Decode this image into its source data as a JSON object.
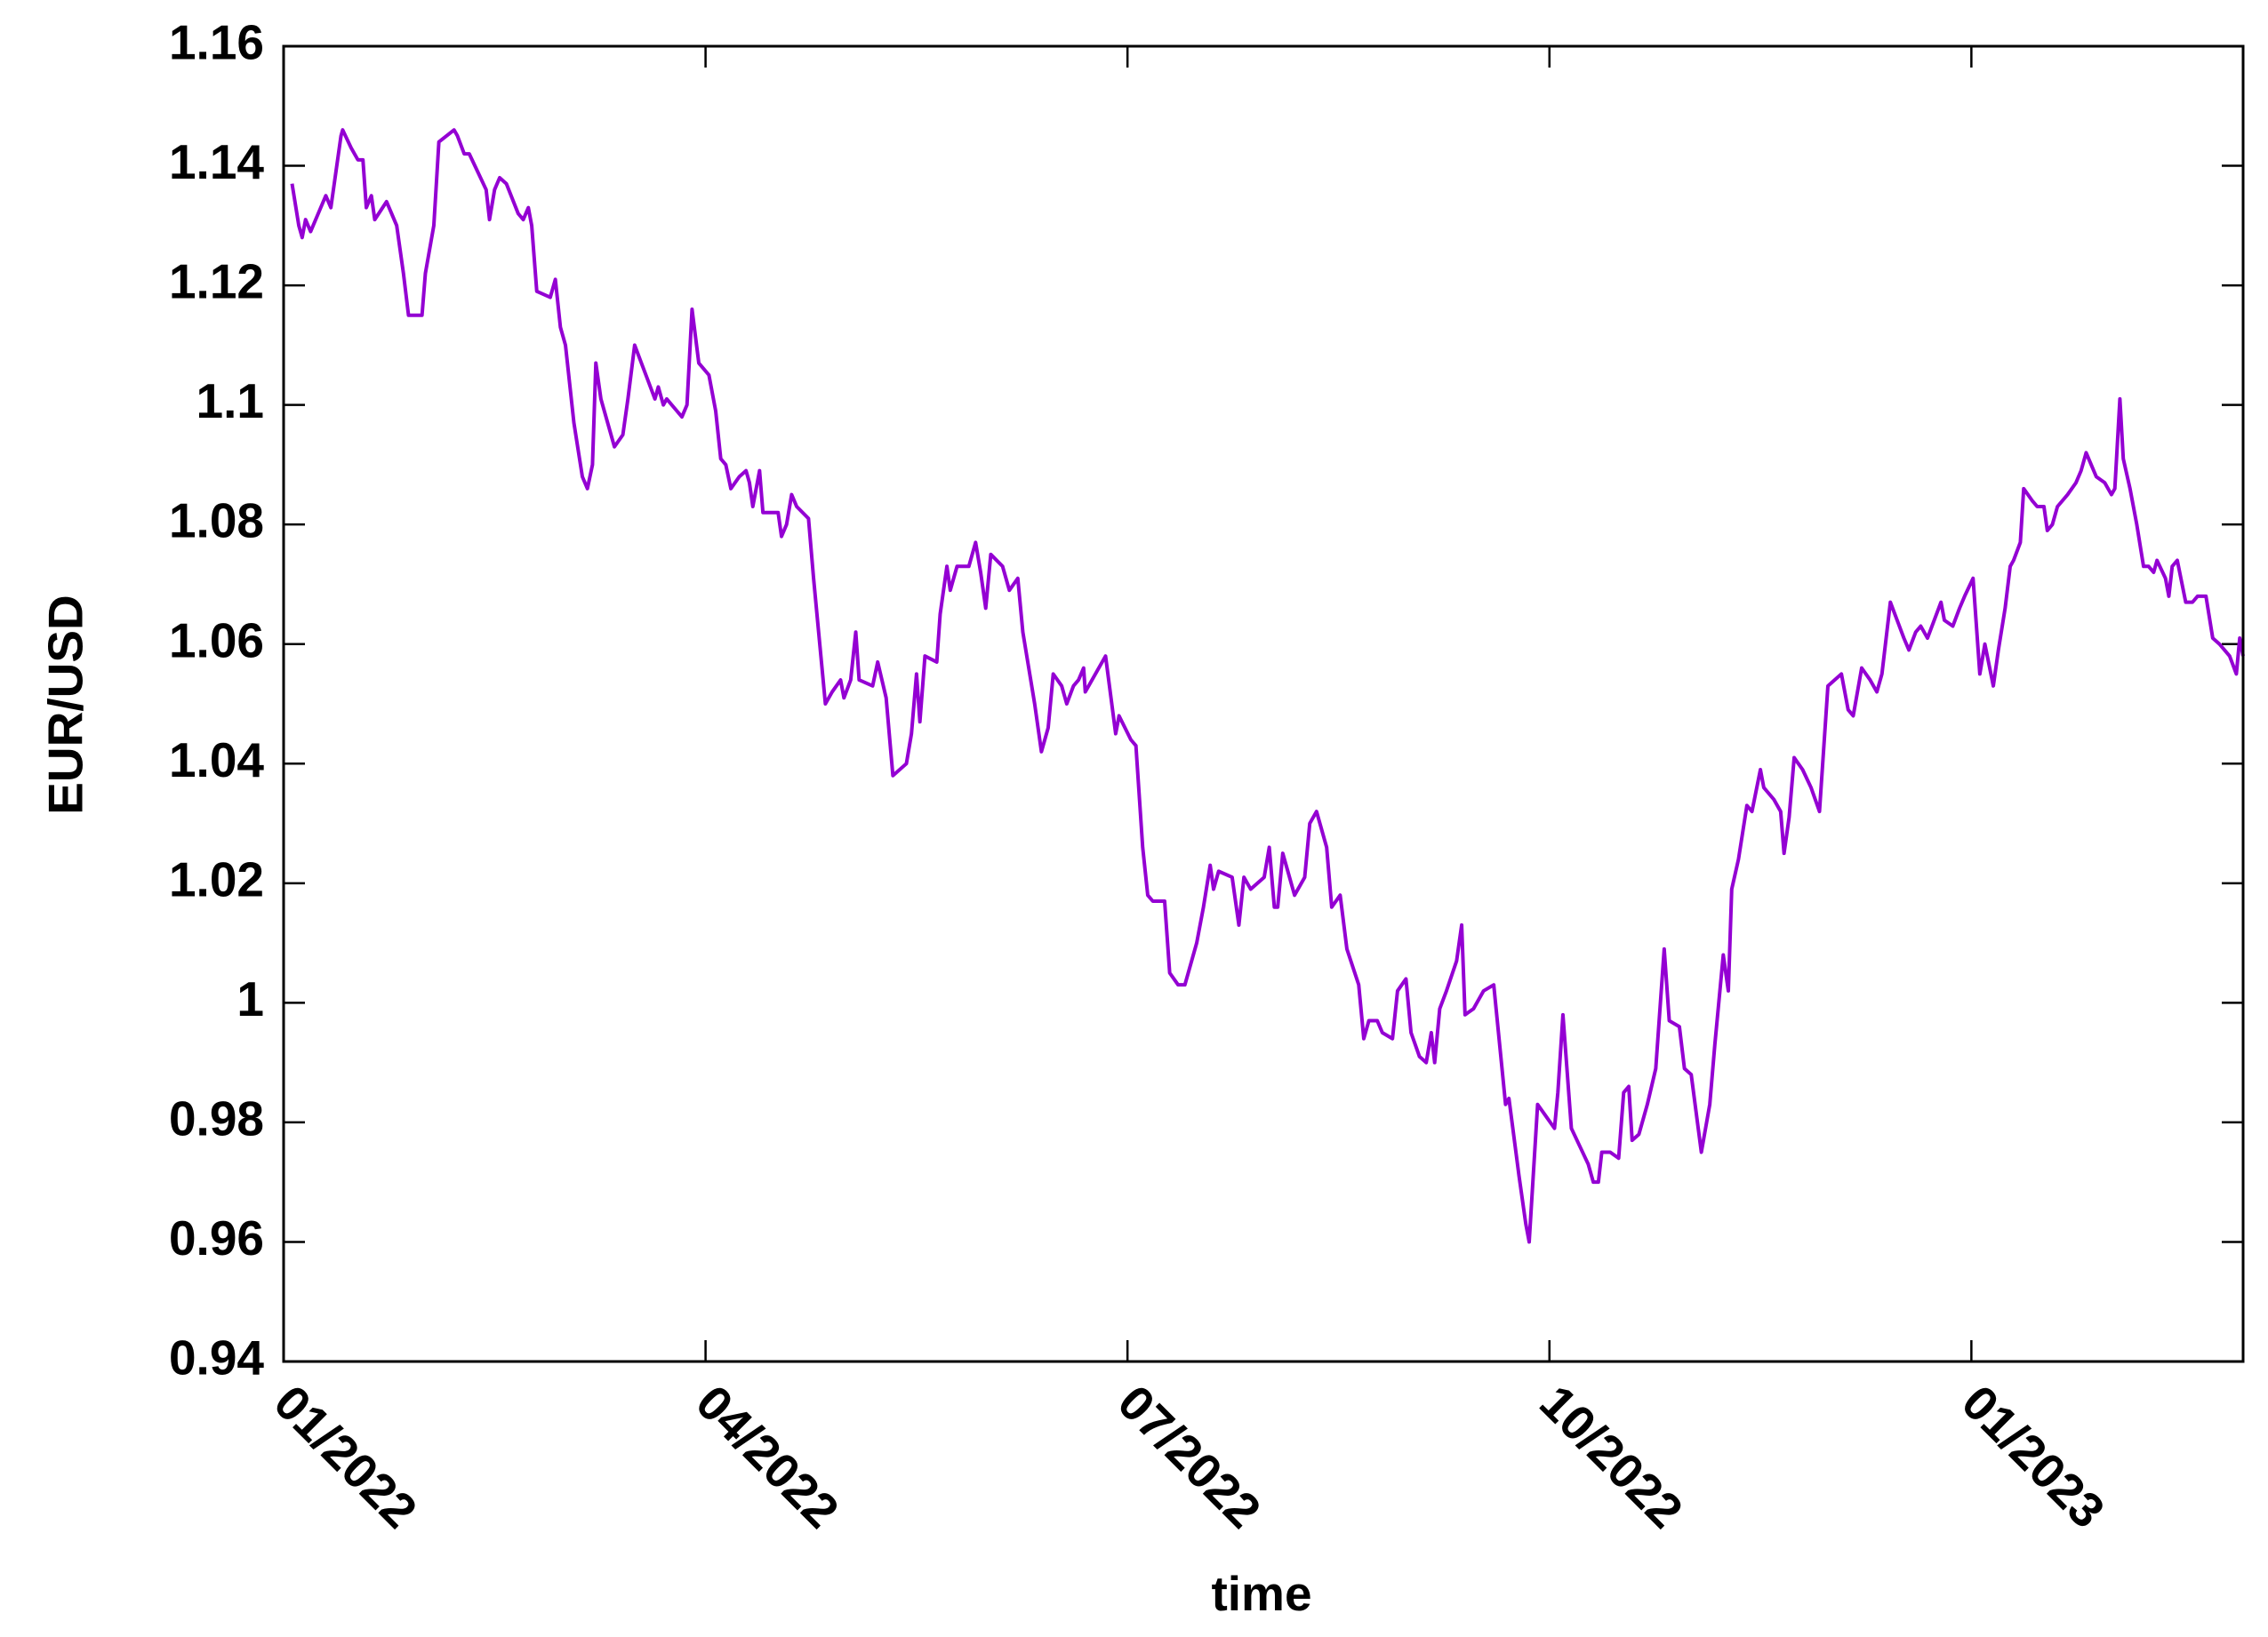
{
  "chart_data": {
    "type": "line",
    "x_label": "time",
    "y_label": "EUR/USD",
    "color": "#9400d3",
    "grid": false,
    "xlim": [
      2022,
      2023.161
    ],
    "xticks": [
      {
        "value": 2022,
        "label": "01/2022"
      },
      {
        "value": 2022.25,
        "label": "04/2022"
      },
      {
        "value": 2022.5,
        "label": "07/2022"
      },
      {
        "value": 2022.75,
        "label": "10/2022"
      },
      {
        "value": 2023,
        "label": "01/2023"
      }
    ],
    "ylim": [
      0.94,
      1.16
    ],
    "yticks": [
      0.94,
      0.96,
      0.98,
      1,
      1.02,
      1.04,
      1.06,
      1.08,
      1.1,
      1.12,
      1.14,
      1.16
    ],
    "x": [
      2022.005,
      2022.009,
      2022.011,
      2022.013,
      2022.016,
      2022.022,
      2022.025,
      2022.028,
      2022.03,
      2022.034,
      2022.035,
      2022.04,
      2022.044,
      2022.047,
      2022.049,
      2022.052,
      2022.054,
      2022.061,
      2022.067,
      2022.071,
      2022.074,
      2022.082,
      2022.084,
      2022.089,
      2022.092,
      2022.101,
      2022.103,
      2022.107,
      2022.11,
      2022.115,
      2022.12,
      2022.122,
      2022.125,
      2022.128,
      2022.132,
      2022.139,
      2022.142,
      2022.145,
      2022.147,
      2022.15,
      2022.158,
      2022.161,
      2022.164,
      2022.167,
      2022.172,
      2022.177,
      2022.18,
      2022.183,
      2022.185,
      2022.188,
      2022.192,
      2022.196,
      2022.201,
      2022.204,
      2022.208,
      2022.212,
      2022.216,
      2022.22,
      2022.222,
      2022.225,
      2022.227,
      2022.233,
      2022.236,
      2022.239,
      2022.242,
      2022.246,
      2022.252,
      2022.256,
      2022.259,
      2022.262,
      2022.265,
      2022.27,
      2022.274,
      2022.276,
      2022.278,
      2022.282,
      2022.284,
      2022.293,
      2022.295,
      2022.298,
      2022.301,
      2022.304,
      2022.311,
      2022.314,
      2022.321,
      2022.325,
      2022.33,
      2022.332,
      2022.336,
      2022.339,
      2022.341,
      2022.349,
      2022.352,
      2022.357,
      2022.361,
      2022.369,
      2022.372,
      2022.375,
      2022.377,
      2022.38,
      2022.387,
      2022.389,
      2022.393,
      2022.395,
      2022.399,
      2022.406,
      2022.41,
      2022.413,
      2022.416,
      2022.419,
      2022.426,
      2022.43,
      2022.435,
      2022.438,
      2022.445,
      2022.449,
      2022.453,
      2022.456,
      2022.461,
      2022.464,
      2022.468,
      2022.471,
      2022.474,
      2022.475,
      2022.487,
      2022.493,
      2022.495,
      2022.502,
      2022.505,
      2022.509,
      2022.512,
      2022.515,
      2022.522,
      2022.525,
      2022.53,
      2022.534,
      2022.541,
      2022.545,
      2022.549,
      2022.551,
      2022.554,
      2022.562,
      2022.566,
      2022.569,
      2022.573,
      2022.581,
      2022.584,
      2022.587,
      2022.589,
      2022.592,
      2022.599,
      2022.605,
      2022.608,
      2022.612,
      2022.618,
      2022.621,
      2022.626,
      2022.63,
      2022.637,
      2022.64,
      2022.643,
      2022.648,
      2022.651,
      2022.657,
      2022.66,
      2022.665,
      2022.668,
      2022.673,
      2022.677,
      2022.68,
      2022.682,
      2022.685,
      2022.689,
      2022.695,
      2022.698,
      2022.7,
      2022.705,
      2022.711,
      2022.717,
      2022.724,
      2022.726,
      2022.732,
      2022.736,
      2022.738,
      2022.743,
      2022.748,
      2022.753,
      2022.755,
      2022.758,
      2022.763,
      2022.768,
      2022.773,
      2022.776,
      2022.779,
      2022.781,
      2022.786,
      2022.791,
      2022.794,
      2022.797,
      2022.799,
      2022.803,
      2022.808,
      2022.813,
      2022.818,
      2022.821,
      2022.827,
      2022.83,
      2022.834,
      2022.84,
      2022.845,
      2022.848,
      2022.853,
      2022.856,
      2022.858,
      2022.862,
      2022.867,
      2022.87,
      2022.875,
      2022.877,
      2022.883,
      2022.887,
      2022.889,
      2022.892,
      2022.895,
      2022.9,
      2022.905,
      2022.91,
      2022.915,
      2022.923,
      2022.927,
      2022.93,
      2022.935,
      2022.94,
      2022.944,
      2022.947,
      2022.952,
      2022.956,
      2022.96,
      2022.963,
      2022.967,
      2022.97,
      2022.974,
      2022.978,
      2022.982,
      2022.984,
      2022.989,
      2022.993,
      2022.996,
      2023.001,
      2023.005,
      2023.008,
      2023.013,
      2023.016,
      2023.02,
      2023.023,
      2023.025,
      2023.029,
      2023.031,
      2023.036,
      2023.039,
      2023.043,
      2023.045,
      2023.048,
      2023.051,
      2023.057,
      2023.062,
      2023.065,
      2023.068,
      2023.071,
      2023.074,
      2023.079,
      2023.083,
      2023.085,
      2023.088,
      2023.09,
      2023.094,
      2023.098,
      2023.102,
      2023.105,
      2023.108,
      2023.11,
      2023.115,
      2023.117,
      2023.119,
      2023.122,
      2023.127,
      2023.131,
      2023.134,
      2023.139,
      2023.143,
      2023.147,
      2023.153,
      2023.157,
      2023.159,
      2023.161
    ],
    "values": [
      1.137,
      1.13,
      1.128,
      1.131,
      1.129,
      1.133,
      1.135,
      1.133,
      1.137,
      1.145,
      1.146,
      1.143,
      1.141,
      1.141,
      1.133,
      1.135,
      1.131,
      1.134,
      1.13,
      1.122,
      1.115,
      1.115,
      1.122,
      1.13,
      1.144,
      1.146,
      1.145,
      1.142,
      1.142,
      1.139,
      1.136,
      1.131,
      1.136,
      1.138,
      1.137,
      1.132,
      1.131,
      1.133,
      1.13,
      1.119,
      1.118,
      1.121,
      1.113,
      1.11,
      1.097,
      1.088,
      1.086,
      1.09,
      1.107,
      1.101,
      1.097,
      1.093,
      1.095,
      1.101,
      1.11,
      1.107,
      1.104,
      1.101,
      1.103,
      1.1,
      1.101,
      1.099,
      1.098,
      1.1,
      1.116,
      1.107,
      1.105,
      1.099,
      1.091,
      1.09,
      1.086,
      1.088,
      1.089,
      1.087,
      1.083,
      1.089,
      1.082,
      1.082,
      1.078,
      1.08,
      1.085,
      1.083,
      1.081,
      1.071,
      1.05,
      1.052,
      1.054,
      1.051,
      1.054,
      1.062,
      1.054,
      1.053,
      1.057,
      1.051,
      1.038,
      1.04,
      1.045,
      1.055,
      1.047,
      1.058,
      1.057,
      1.065,
      1.073,
      1.069,
      1.073,
      1.073,
      1.077,
      1.072,
      1.066,
      1.075,
      1.073,
      1.069,
      1.071,
      1.062,
      1.05,
      1.042,
      1.046,
      1.055,
      1.053,
      1.05,
      1.053,
      1.054,
      1.056,
      1.052,
      1.058,
      1.045,
      1.048,
      1.044,
      1.043,
      1.026,
      1.018,
      1.017,
      1.017,
      1.005,
      1.003,
      1.003,
      1.01,
      1.016,
      1.023,
      1.019,
      1.022,
      1.021,
      1.013,
      1.021,
      1.019,
      1.021,
      1.026,
      1.016,
      1.016,
      1.025,
      1.018,
      1.021,
      1.03,
      1.032,
      1.026,
      1.016,
      1.018,
      1.009,
      1.003,
      0.994,
      0.997,
      0.997,
      0.995,
      0.994,
      1.002,
      1.004,
      0.995,
      0.991,
      0.99,
      0.995,
      0.99,
      0.999,
      1.002,
      1.007,
      1.013,
      0.998,
      0.999,
      1.002,
      1.003,
      0.983,
      0.984,
      0.971,
      0.963,
      0.96,
      0.983,
      0.981,
      0.979,
      0.985,
      0.998,
      0.979,
      0.976,
      0.973,
      0.97,
      0.97,
      0.975,
      0.975,
      0.974,
      0.985,
      0.986,
      0.977,
      0.978,
      0.983,
      0.989,
      1.009,
      0.997,
      0.996,
      0.989,
      0.988,
      0.975,
      0.983,
      0.993,
      1.008,
      1.002,
      1.019,
      1.024,
      1.033,
      1.032,
      1.039,
      1.036,
      1.034,
      1.032,
      1.025,
      1.031,
      1.041,
      1.039,
      1.036,
      1.032,
      1.053,
      1.055,
      1.049,
      1.048,
      1.056,
      1.054,
      1.052,
      1.055,
      1.067,
      1.064,
      1.061,
      1.059,
      1.062,
      1.063,
      1.061,
      1.064,
      1.067,
      1.064,
      1.063,
      1.066,
      1.068,
      1.071,
      1.055,
      1.06,
      1.053,
      1.059,
      1.066,
      1.073,
      1.074,
      1.077,
      1.086,
      1.084,
      1.083,
      1.083,
      1.079,
      1.08,
      1.083,
      1.085,
      1.087,
      1.089,
      1.092,
      1.09,
      1.088,
      1.087,
      1.085,
      1.086,
      1.101,
      1.091,
      1.086,
      1.08,
      1.073,
      1.073,
      1.072,
      1.074,
      1.071,
      1.068,
      1.073,
      1.074,
      1.067,
      1.067,
      1.068,
      1.068,
      1.061,
      1.06,
      1.058,
      1.055,
      1.061,
      1.058
    ]
  }
}
